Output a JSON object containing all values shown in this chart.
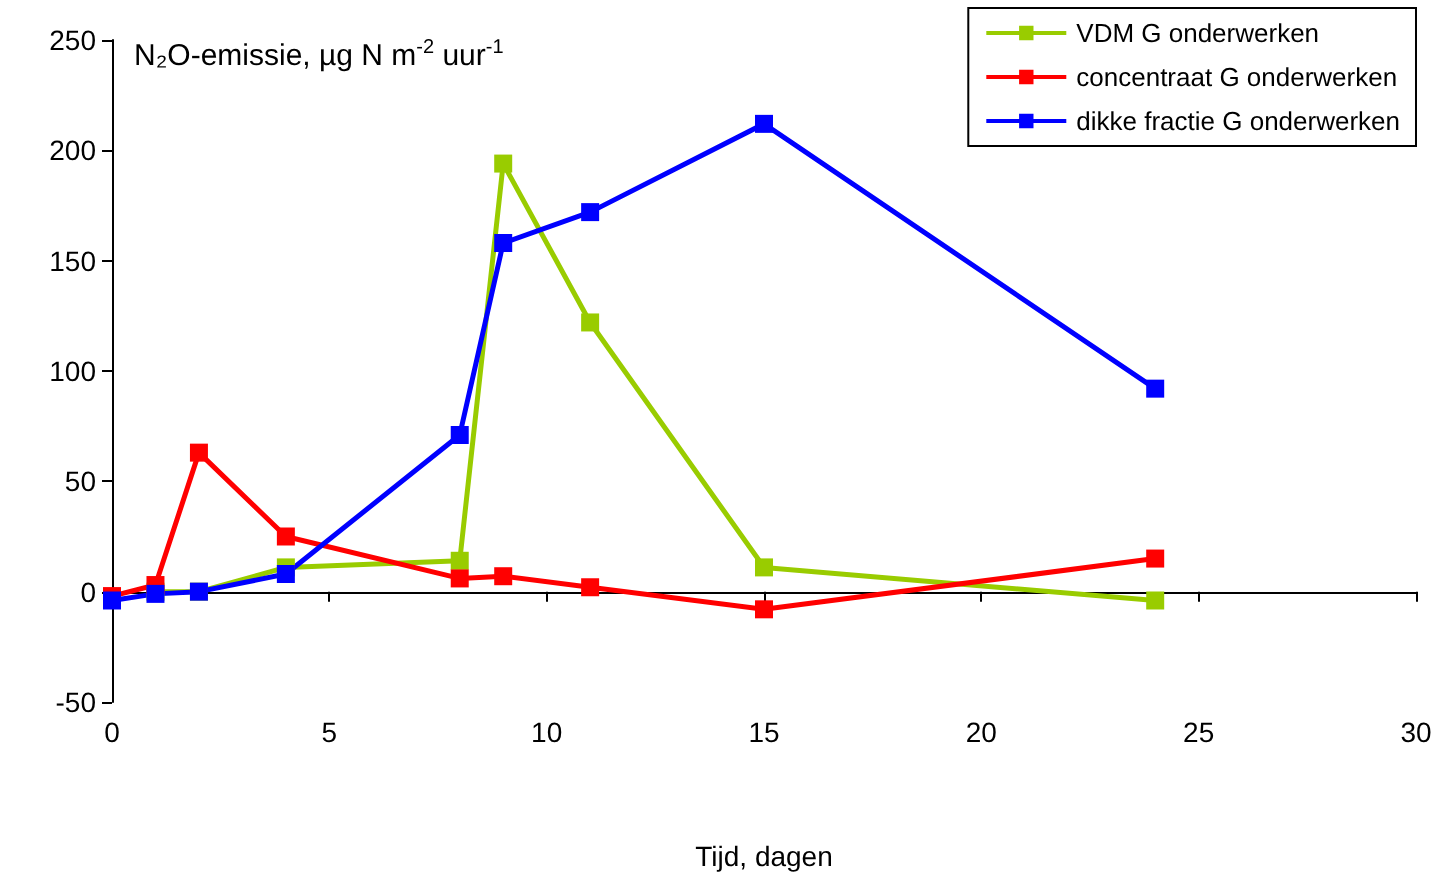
{
  "chart_data": {
    "type": "line",
    "title": "N₂O-emissie, µg N m$^{-2}$ uur$^{-1}$",
    "xlabel": "Tijd, dagen",
    "x": [
      0,
      1,
      2,
      4,
      8,
      9,
      11,
      15,
      24
    ],
    "series": [
      {
        "name": "VDM G onderwerken",
        "color": "#99cc00",
        "values": [
          null,
          0,
          0,
          11,
          14,
          194,
          122,
          11,
          -4
        ]
      },
      {
        "name": "concentraat G onderwerken",
        "color": "#ff0000",
        "values": [
          -2,
          3,
          63,
          25,
          6,
          7,
          2,
          -8,
          15
        ]
      },
      {
        "name": "dikke fractie G onderwerken",
        "color": "#0000ff",
        "values": [
          -4,
          -1,
          0,
          8,
          71,
          158,
          172,
          212,
          92
        ]
      }
    ],
    "xlim": [
      0,
      30
    ],
    "xticks": [
      0,
      5,
      10,
      15,
      20,
      25,
      30
    ],
    "ylim": [
      -50,
      250
    ],
    "yticks": [
      -50,
      0,
      50,
      100,
      150,
      200,
      250
    ],
    "legend": "top right",
    "marker": "square",
    "line_style": "solid"
  }
}
